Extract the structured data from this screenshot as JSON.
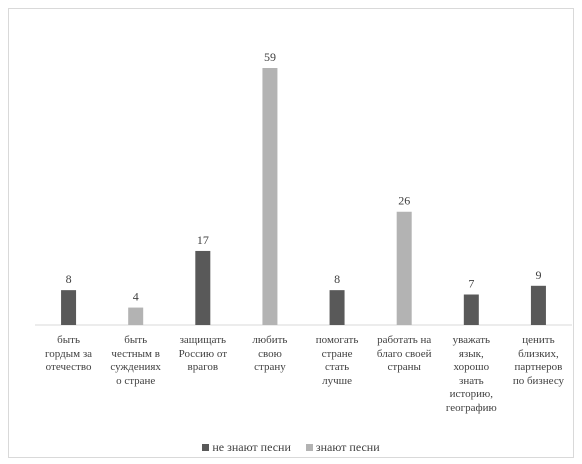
{
  "chart_data": {
    "type": "bar",
    "categories": [
      "быть гордым за отечество",
      "быть честным в суждениях о стране",
      "защищать Россию от врагов",
      "любить свою страну",
      "помогать стране стать лучше",
      "работать на благо своей страны",
      "уважать язык, хорошо знать историю, географию",
      "ценить близких, партнеров по бизнесу"
    ],
    "category_lines": [
      [
        "быть",
        "гордым за",
        "отечество"
      ],
      [
        "быть",
        "честным в",
        "суждениях",
        "о стране"
      ],
      [
        "защищать",
        "Россию от",
        "врагов"
      ],
      [
        "любить",
        "свою",
        "страну"
      ],
      [
        "помогать",
        "стране",
        "стать",
        "лучше"
      ],
      [
        "работать на",
        "благо своей",
        "страны"
      ],
      [
        "уважать",
        "язык,",
        "хорошо",
        "знать",
        "историю,",
        "географию"
      ],
      [
        "ценить",
        "близких,",
        "партнеров",
        "по бизнесу"
      ]
    ],
    "series": [
      {
        "name": "не знают песни",
        "color": "#595959",
        "values": [
          8,
          null,
          17,
          null,
          8,
          null,
          7,
          9
        ]
      },
      {
        "name": "знают песни",
        "color": "#b3b3b3",
        "values": [
          null,
          4,
          null,
          59,
          null,
          26,
          null,
          null
        ]
      }
    ],
    "ylim": [
      0,
      65
    ],
    "grid": false,
    "legend_position": "bottom",
    "data_labels": true
  }
}
